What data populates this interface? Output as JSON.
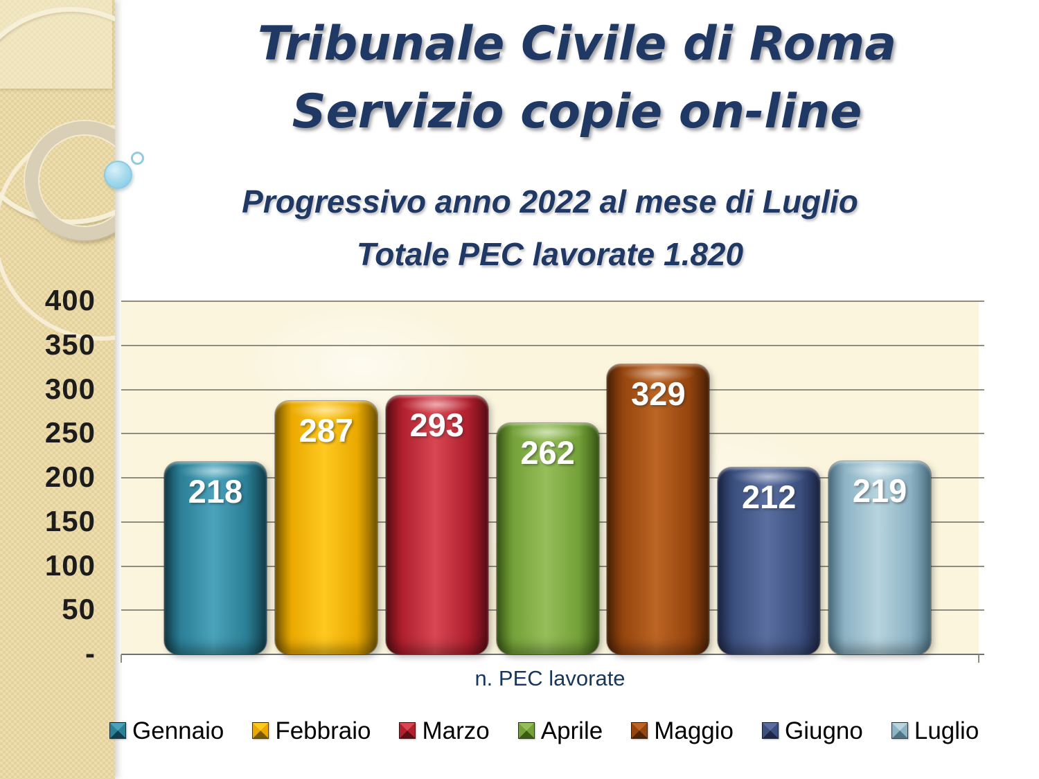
{
  "slide": {
    "title_line1": "Tribunale Civile di Roma",
    "title_line2": "Servizio copie on-line",
    "subtitle_line1": "Progressivo anno 2022 al mese di Luglio",
    "subtitle_line2": "Totale PEC lavorate 1.820"
  },
  "chart_data": {
    "type": "bar",
    "title": "",
    "xlabel": "n. PEC lavorate",
    "ylabel": "",
    "ylim": [
      0,
      400
    ],
    "y_tick_step": 50,
    "y_tick_labels": [
      "400",
      "350",
      "300",
      "250",
      "200",
      "150",
      "100",
      "50",
      "-"
    ],
    "grid": true,
    "legend_position": "bottom",
    "categories": [
      "Gennaio",
      "Febbraio",
      "Marzo",
      "Aprile",
      "Maggio",
      "Giugno",
      "Luglio"
    ],
    "values": [
      218,
      287,
      293,
      262,
      329,
      212,
      219
    ],
    "series_colors": [
      {
        "name": "teal",
        "light": "#4aa3bb",
        "base": "#2b7f96",
        "dark": "#113f4d"
      },
      {
        "name": "gold",
        "light": "#ffc920",
        "base": "#eaa900",
        "dark": "#7a5a00"
      },
      {
        "name": "red",
        "light": "#d84752",
        "base": "#b01f2e",
        "dark": "#5f0d14"
      },
      {
        "name": "green",
        "light": "#96be5a",
        "base": "#74a139",
        "dark": "#3c5c14"
      },
      {
        "name": "brown",
        "light": "#bc6524",
        "base": "#96450e",
        "dark": "#4e2305"
      },
      {
        "name": "navy",
        "light": "#5a6e9f",
        "base": "#3c5080",
        "dark": "#1d2646"
      },
      {
        "name": "light-blue",
        "light": "#b7d4df",
        "base": "#8db3c4",
        "dark": "#4f7486"
      }
    ],
    "accent_title_color": "#1f3864",
    "axis_label_color": "#17365d"
  }
}
